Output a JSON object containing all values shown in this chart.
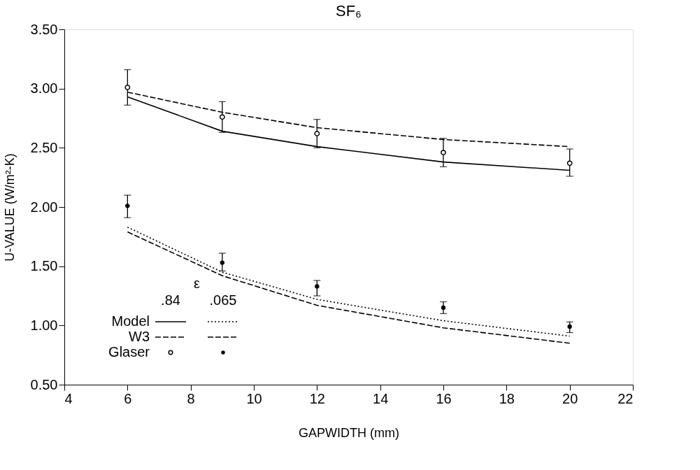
{
  "chart_data": {
    "type": "line",
    "title": "SF₆",
    "xlabel": "GAPWIDTH (mm)",
    "ylabel": "U-VALUE (W/m²-K)",
    "legend_title": "ε",
    "annotations": [
      ".84",
      ".065"
    ],
    "x": [
      6,
      9,
      12,
      16,
      20
    ],
    "xlim": [
      4,
      22
    ],
    "xticks": [
      4,
      6,
      8,
      10,
      12,
      14,
      16,
      18,
      20,
      22
    ],
    "ylim": [
      0.5,
      3.5
    ],
    "yticks": [
      {
        "value": 0.5,
        "label": "0.50"
      },
      {
        "value": 1.0,
        "label": "1.00"
      },
      {
        "value": 1.5,
        "label": "1.50"
      },
      {
        "value": 2.0,
        "label": "2.00"
      },
      {
        "value": 2.5,
        "label": "2.50"
      },
      {
        "value": 3.0,
        "label": "3.00"
      },
      {
        "value": 3.5,
        "label": "3.50"
      }
    ],
    "grid": false,
    "legend": "bottom left",
    "series": [
      {
        "name": "Model",
        "color": "#000000",
        "line_style": "solid",
        "marker": "none",
        "values": [
          2.93,
          2.64,
          2.51,
          2.38,
          2.31
        ]
      },
      {
        "name": "W3",
        "color": "#000000",
        "line_style": "dashed",
        "marker": "none",
        "values": [
          2.97,
          2.8,
          2.67,
          2.57,
          2.51
        ]
      },
      {
        "name": "Glaser",
        "type": "scatter",
        "color": "#000000",
        "marker": "circle",
        "values": [
          3.01,
          2.76,
          2.62,
          2.46,
          2.37
        ],
        "errors": [
          [
            2.86,
            3.16
          ],
          [
            2.63,
            2.89
          ],
          [
            2.5,
            2.74
          ],
          [
            2.34,
            2.58
          ],
          [
            2.26,
            2.49
          ]
        ]
      },
      {
        "color": "#000000",
        "line_style": "dotted",
        "marker": "none",
        "values": [
          1.83,
          1.45,
          1.22,
          1.04,
          0.91
        ]
      },
      {
        "color": "#000000",
        "line_style": "dashed",
        "marker": "none",
        "values": [
          1.79,
          1.42,
          1.17,
          0.98,
          0.85
        ]
      },
      {
        "type": "scatter",
        "color": "#000000",
        "marker": "circle",
        "values": [
          2.01,
          1.53,
          1.33,
          1.15,
          0.99
        ],
        "errors": [
          [
            1.91,
            2.1
          ],
          [
            1.46,
            1.61
          ],
          [
            1.25,
            1.38
          ],
          [
            1.1,
            1.2
          ],
          [
            0.94,
            1.03
          ]
        ]
      }
    ]
  }
}
